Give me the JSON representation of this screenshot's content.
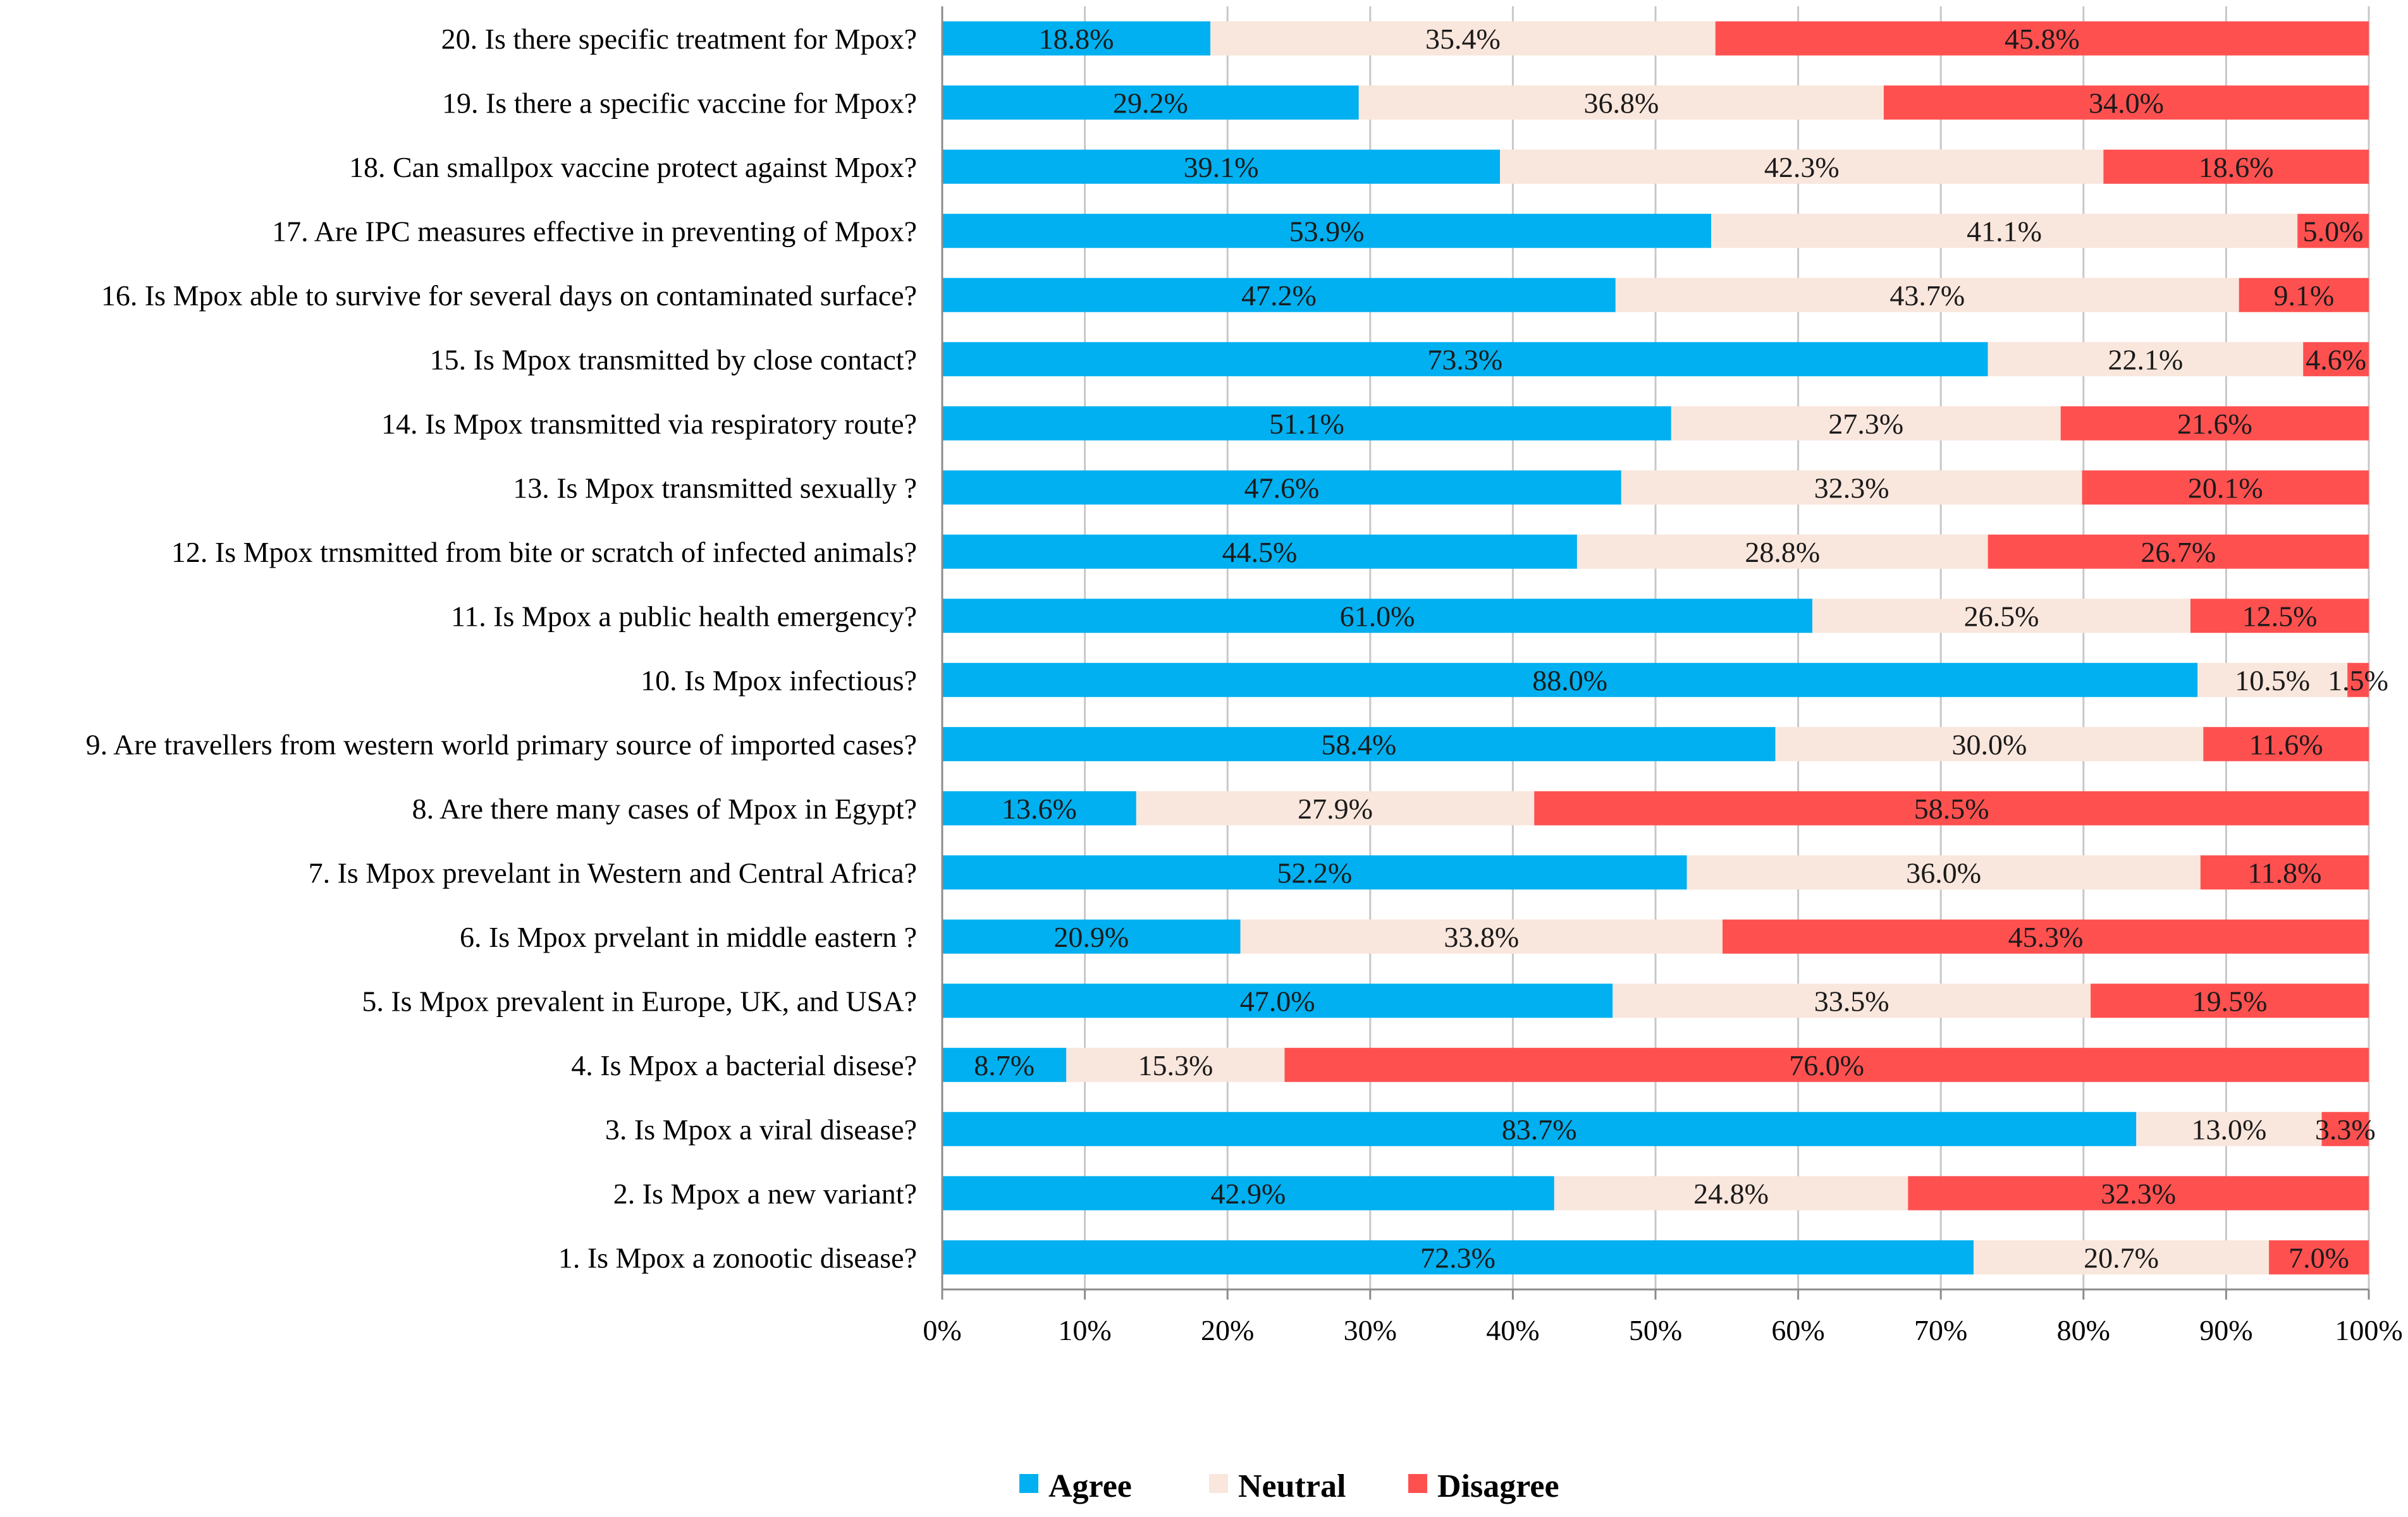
{
  "chart_data": {
    "type": "bar",
    "orientation": "horizontal",
    "stacked": "percent",
    "title": "",
    "xlabel": "",
    "ylabel": "",
    "xlim": [
      0,
      100
    ],
    "x_ticks": [
      "0%",
      "10%",
      "20%",
      "30%",
      "40%",
      "50%",
      "60%",
      "70%",
      "80%",
      "90%",
      "100%"
    ],
    "grid": true,
    "legend_position": "bottom",
    "categories": [
      "20. Is there specific treatment for Mpox?",
      "19. Is there a specific vaccine for Mpox?",
      "18. Can smallpox vaccine protect against Mpox?",
      "17. Are IPC measures effective in preventing of Mpox?",
      "16. Is Mpox able to survive for several  days on contaminated surface?",
      "15. Is Mpox transmitted by close contact?",
      "14. Is Mpox  transmitted via respiratory route?",
      "13. Is Mpox transmitted sexually ?",
      "12. Is Mpox trnsmitted from bite or scratch of infected animals?",
      "11. Is Mpox a public health emergency?",
      "10. Is Mpox infectious?",
      "9. Are travellers from western world primary source of imported cases?",
      "8. Are there many cases of Mpox in Egypt?",
      "7. Is Mpox prevelant in Western and Central Africa?",
      "6. Is Mpox prvelant in middle eastern ?",
      "5. Is Mpox prevalent in Europe, UK, and USA?",
      "4. Is Mpox a bacterial disese?",
      "3. Is Mpox a viral disease?",
      "2. Is Mpox a new variant?",
      "1. Is Mpox a zonootic disease?"
    ],
    "series": [
      {
        "name": "Agree",
        "color": "#00b0f0",
        "values": [
          18.8,
          29.2,
          39.1,
          53.9,
          47.2,
          73.3,
          51.1,
          47.6,
          44.5,
          61.0,
          88.0,
          58.4,
          13.6,
          52.2,
          20.9,
          47.0,
          8.7,
          83.7,
          42.9,
          72.3
        ],
        "labels": [
          "18.8%",
          "29.2%",
          "39.1%",
          "53.9%",
          "47.2%",
          "73.3%",
          "51.1%",
          "47.6%",
          "44.5%",
          "61.0%",
          "88.0%",
          "58.4%",
          "13.6%",
          "52.2%",
          "20.9%",
          "47.0%",
          "8.7%",
          "83.7%",
          "42.9%",
          "72.3%"
        ]
      },
      {
        "name": "Neutral",
        "color": "#f9e6dc",
        "values": [
          35.4,
          36.8,
          42.3,
          41.1,
          43.7,
          22.1,
          27.3,
          32.3,
          28.8,
          26.5,
          10.5,
          30.0,
          27.9,
          36.0,
          33.8,
          33.5,
          15.3,
          13.0,
          24.8,
          20.7
        ],
        "labels": [
          "35.4%",
          "36.8%",
          "42.3%",
          "41.1%",
          "43.7%",
          "22.1%",
          "27.3%",
          "32.3%",
          "28.8%",
          "26.5%",
          "10.5%",
          "30.0%",
          "27.9%",
          "36.0%",
          "33.8%",
          "33.5%",
          "15.3%",
          "13.0%",
          "24.8%",
          "20.7%"
        ]
      },
      {
        "name": "Disagree",
        "color": "#ff5050",
        "values": [
          45.8,
          34.0,
          18.6,
          5.0,
          9.1,
          4.6,
          21.6,
          20.1,
          26.7,
          12.5,
          1.5,
          11.6,
          58.5,
          11.8,
          45.3,
          19.5,
          76.0,
          3.3,
          32.3,
          7.0
        ],
        "labels": [
          "45.8%",
          "34.0%",
          "18.6%",
          "5.0%",
          "9.1%",
          "4.6%",
          "21.6%",
          "20.1%",
          "26.7%",
          "12.5%",
          "1.5%",
          "11.6%",
          "58.5%",
          "11.8%",
          "45.3%",
          "19.5%",
          "76.0%",
          "3.3%",
          "32.3%",
          "7.0%"
        ]
      }
    ]
  }
}
